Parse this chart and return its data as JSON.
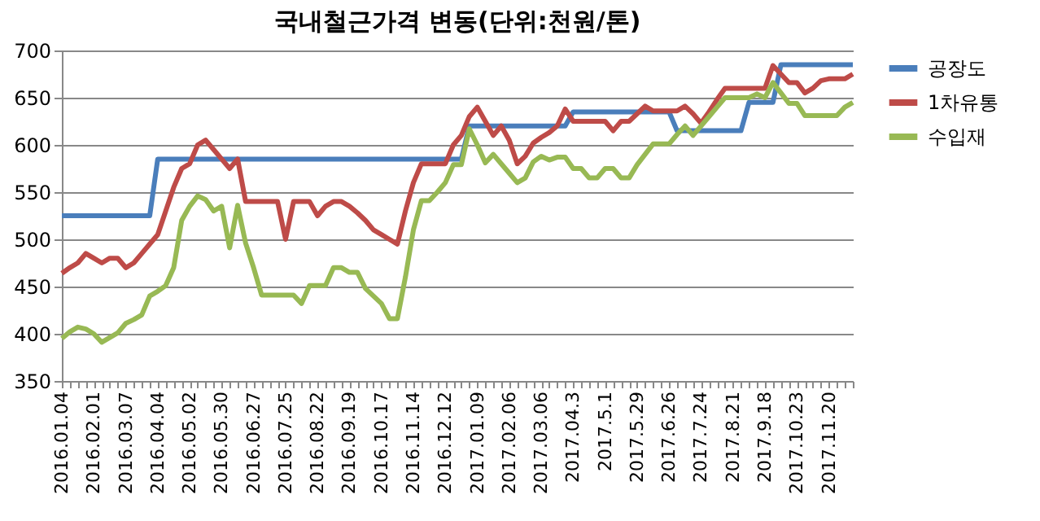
{
  "chart_data": {
    "type": "line",
    "title": "국내철근가격 변동(단위:천원/톤)",
    "categories": [
      "2016.01.04",
      null,
      null,
      null,
      "2016.02.01",
      null,
      null,
      null,
      "2016.03.07",
      null,
      null,
      null,
      "2016.04.04",
      null,
      null,
      null,
      "2016.05.02",
      null,
      null,
      null,
      "2016.05.30",
      null,
      null,
      null,
      "2016.06.27",
      null,
      null,
      null,
      "2016.07.25",
      null,
      null,
      null,
      "2016.08.22",
      null,
      null,
      null,
      "2016.09.19",
      null,
      null,
      null,
      "2016.10.17",
      null,
      null,
      null,
      "2016.11.14",
      null,
      null,
      null,
      "2016.12.12",
      null,
      null,
      null,
      "2017.01.09",
      null,
      null,
      null,
      "2017.02.06",
      null,
      null,
      null,
      "2017.03.06",
      null,
      null,
      null,
      "2017.04.3",
      null,
      null,
      null,
      "2017.5.1",
      null,
      null,
      null,
      "2017.5.29",
      null,
      null,
      null,
      "2017.6.26",
      null,
      null,
      null,
      "2017.7.24",
      null,
      null,
      null,
      "2017.8.21",
      null,
      null,
      null,
      "2017.9.18",
      null,
      null,
      null,
      "2017.10.23",
      null,
      null,
      null,
      "2017.11.20",
      null,
      null,
      null
    ],
    "series": [
      {
        "name": "공장도",
        "color": "#4a7ebb",
        "values": [
          525,
          525,
          525,
          525,
          525,
          525,
          525,
          525,
          525,
          525,
          525,
          525,
          585,
          585,
          585,
          585,
          585,
          585,
          585,
          585,
          585,
          585,
          585,
          585,
          585,
          585,
          585,
          585,
          585,
          585,
          585,
          585,
          585,
          585,
          585,
          585,
          585,
          585,
          585,
          585,
          585,
          585,
          585,
          585,
          585,
          585,
          585,
          585,
          585,
          585,
          585,
          620,
          620,
          620,
          620,
          620,
          620,
          620,
          620,
          620,
          620,
          620,
          620,
          620,
          635,
          635,
          635,
          635,
          635,
          635,
          635,
          635,
          635,
          635,
          635,
          635,
          635,
          615,
          615,
          615,
          615,
          615,
          615,
          615,
          615,
          615,
          645,
          645,
          645,
          645,
          685,
          685,
          685,
          685,
          685,
          685,
          685,
          685,
          685,
          685
        ]
      },
      {
        "name": "1차유통",
        "color": "#be4b48",
        "values": [
          464,
          470,
          475,
          485,
          480,
          475,
          480,
          480,
          470,
          475,
          485,
          495,
          505,
          530,
          555,
          575,
          580,
          600,
          605,
          595,
          585,
          575,
          585,
          540,
          540,
          540,
          540,
          540,
          500,
          540,
          540,
          540,
          525,
          535,
          540,
          540,
          535,
          528,
          520,
          510,
          505,
          500,
          495,
          530,
          560,
          580,
          580,
          580,
          580,
          600,
          610,
          630,
          640,
          625,
          610,
          620,
          605,
          580,
          588,
          602,
          608,
          613,
          620,
          638,
          625,
          625,
          625,
          625,
          625,
          615,
          625,
          625,
          633,
          641,
          636,
          636,
          636,
          636,
          641,
          633,
          623,
          635,
          648,
          660,
          660,
          660,
          660,
          660,
          660,
          684,
          675,
          666,
          666,
          655,
          660,
          668,
          670,
          670,
          670,
          675
        ]
      },
      {
        "name": "수입재",
        "color": "#98b954",
        "values": [
          395,
          402,
          407,
          405,
          400,
          391,
          396,
          401,
          411,
          415,
          420,
          440,
          445,
          451,
          470,
          520,
          535,
          546,
          542,
          530,
          535,
          491,
          536,
          496,
          470,
          441,
          441,
          441,
          441,
          441,
          432,
          451,
          451,
          451,
          470,
          470,
          465,
          465,
          448,
          440,
          432,
          416,
          416,
          460,
          510,
          541,
          541,
          550,
          560,
          579,
          579,
          617,
          600,
          581,
          590,
          580,
          570,
          560,
          565,
          582,
          588,
          584,
          587,
          587,
          575,
          575,
          565,
          565,
          575,
          575,
          565,
          565,
          579,
          590,
          601,
          601,
          601,
          611,
          620,
          610,
          620,
          630,
          640,
          650,
          650,
          650,
          650,
          654,
          650,
          666,
          655,
          644,
          644,
          631,
          631,
          631,
          631,
          631,
          640,
          645
        ]
      }
    ],
    "ylim": [
      350,
      700
    ],
    "yticks": [
      350,
      400,
      450,
      500,
      550,
      600,
      650,
      700
    ],
    "grid": "y",
    "legend": "right",
    "marker": "none"
  }
}
